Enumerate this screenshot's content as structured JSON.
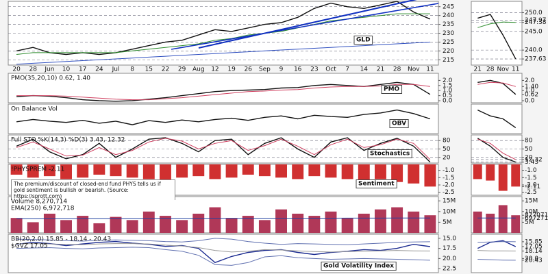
{
  "chart_data": {
    "type": "panels",
    "categories": [
      "20",
      "28",
      "Jun",
      "10",
      "17",
      "24",
      "Jul",
      "8",
      "15",
      "22",
      "29",
      "Aug",
      "12",
      "19",
      "26",
      "Sep",
      "9",
      "16",
      "23",
      "Oct",
      "7",
      "14",
      "21",
      "28",
      "Nov",
      "11"
    ],
    "zoom_categories": [
      "21",
      "28",
      "Nov",
      "11"
    ],
    "panels": [
      {
        "type": "line",
        "label": "GLD",
        "grid": true,
        "ylim": [
          212,
          248
        ],
        "yticks": [
          215,
          220,
          225,
          230,
          235,
          240,
          245
        ],
        "series": [
          {
            "color": "#111111",
            "values": [
              220,
              222,
              219,
              218,
              219,
              218,
              219,
              221,
              223,
              225,
              226,
              229,
              232,
              231,
              233,
              235,
              236,
              239,
              244,
              247,
              245,
              244,
              246,
              248,
              242,
              238
            ]
          },
          {
            "color": "#2a8a2a",
            "values": [
              218,
              219,
              219,
              219,
              219,
              219,
              219,
              220,
              221,
              222,
              223,
              224,
              226,
              227,
              229,
              230,
              231,
              233,
              235,
              237,
              238,
              239,
              240,
              241,
              241,
              241
            ]
          },
          {
            "color": "#3050c0",
            "values": [
              212.5,
              213,
              213.5,
              214,
              214.5,
              215,
              215.5,
              216,
              216.5,
              217,
              217.5,
              218,
              218.5,
              219,
              219.5,
              220,
              220.5,
              221,
              221.5,
              222,
              222.5,
              223,
              223.5,
              224,
              224.5,
              225
            ]
          }
        ],
        "zoom": {
          "ylim": [
            236,
            253
          ],
          "yticks": [
            {
              "value": 250,
              "label": "250.0"
            },
            247.97,
            247.38,
            {
              "value": 245,
              "label": "245.0"
            },
            {
              "value": 240,
              "label": "240.0"
            },
            237.63
          ],
          "series": [
            {
              "color": "#111111",
              "values": [
                248.5,
                249.5,
                244,
                237.63
              ]
            },
            {
              "color": "#2a8a2a",
              "values": [
                246,
                247,
                247.5,
                247.38
              ]
            }
          ]
        }
      },
      {
        "type": "line",
        "label": "PMO",
        "legend": [
          "PMO(35,20,10) 0.62, 1.40"
        ],
        "grid": false,
        "ylim": [
          -0.2,
          2.7
        ],
        "yticks": [
          {
            "value": 2,
            "label": "2.0"
          },
          1.5,
          {
            "value": 1,
            "label": "1.0"
          },
          0.5,
          {
            "value": 0,
            "label": "0.0"
          }
        ],
        "series": [
          {
            "color": "#111111",
            "values": [
              0.4,
              0.5,
              0.45,
              0.3,
              0.1,
              0.0,
              -0.05,
              0.0,
              0.15,
              0.3,
              0.5,
              0.7,
              0.9,
              1.0,
              1.05,
              1.1,
              1.25,
              1.3,
              1.5,
              1.6,
              1.5,
              1.4,
              1.6,
              1.8,
              1.6,
              0.62
            ]
          },
          {
            "color": "#d04060",
            "values": [
              0.5,
              0.5,
              0.5,
              0.45,
              0.35,
              0.25,
              0.15,
              0.1,
              0.1,
              0.2,
              0.3,
              0.45,
              0.6,
              0.75,
              0.9,
              0.95,
              1.05,
              1.1,
              1.25,
              1.35,
              1.4,
              1.4,
              1.45,
              1.6,
              1.6,
              1.4
            ]
          }
        ],
        "zoom": {
          "ylim": [
            -0.2,
            2.7
          ],
          "yticks": [
            {
              "value": 2,
              "label": "2.0"
            },
            {
              "value": 1.4,
              "label": "1.40"
            },
            {
              "value": 1,
              "label": "1.0"
            },
            0.62,
            {
              "value": 0,
              "label": "0.0"
            }
          ],
          "series": [
            {
              "color": "#111111",
              "values": [
                1.8,
                2.0,
                1.7,
                0.62
              ]
            },
            {
              "color": "#d04060",
              "values": [
                1.6,
                1.8,
                1.75,
                1.4
              ]
            }
          ]
        }
      },
      {
        "type": "line",
        "label": "OBV",
        "legend": [
          "On Balance Vol"
        ],
        "grid": false,
        "ylim": [
          0,
          100
        ],
        "yticks": [],
        "series": [
          {
            "color": "#111111",
            "values": [
              40,
              48,
              42,
              38,
              45,
              35,
              42,
              30,
              44,
              38,
              46,
              40,
              48,
              52,
              45,
              55,
              60,
              50,
              62,
              58,
              55,
              65,
              70,
              80,
              68,
              50
            ]
          }
        ],
        "zoom": {
          "ylim": [
            40,
            90
          ],
          "yticks": [],
          "series": [
            {
              "color": "#111111",
              "values": [
                80,
                70,
                65,
                50
              ]
            }
          ]
        }
      },
      {
        "type": "line",
        "label": "Stochastics",
        "legend": [
          "Full STO %K(14,3) %D(3) 3.43, 12.32"
        ],
        "grid": true,
        "ylim": [
          0,
          100
        ],
        "yticks": [
          80,
          50,
          20
        ],
        "series": [
          {
            "color": "#111111",
            "values": [
              60,
              85,
              40,
              15,
              30,
              70,
              20,
              50,
              85,
              90,
              70,
              40,
              80,
              85,
              30,
              70,
              90,
              50,
              20,
              75,
              90,
              45,
              70,
              88,
              60,
              3.43
            ]
          },
          {
            "color": "#d04060",
            "values": [
              55,
              75,
              50,
              25,
              28,
              55,
              30,
              45,
              75,
              88,
              78,
              50,
              70,
              80,
              45,
              62,
              85,
              60,
              30,
              65,
              85,
              55,
              65,
              85,
              70,
              12.32
            ]
          }
        ],
        "zoom": {
          "ylim": [
            0,
            100
          ],
          "yticks": [
            80,
            50,
            20,
            12.32,
            3.43
          ],
          "series": [
            {
              "color": "#111111",
              "values": [
                88,
                60,
                20,
                3.43
              ]
            },
            {
              "color": "#d04060",
              "values": [
                85,
                70,
                35,
                12.32
              ]
            }
          ]
        }
      },
      {
        "type": "bar",
        "label": "Sentiment",
        "legend": [
          "!PHYSPREM -2.11"
        ],
        "note": "The premium/discount of closed-end fund PHYS tells us if gold sentiment is bullish or bearish. (Source: https://sprott.com)",
        "grid": false,
        "ylim": [
          -2.7,
          -0.6
        ],
        "yticks": [
          {
            "value": -1,
            "label": "-1.0"
          },
          -1.5,
          {
            "value": -2,
            "label": "-2.0"
          },
          -2.5
        ],
        "series": [
          {
            "color": "#d03030",
            "values": [
              -1.3,
              -1.5,
              -1.4,
              -1.6,
              -1.5,
              -1.3,
              -1.4,
              -1.5,
              -1.6,
              -1.7,
              -1.5,
              -1.4,
              -1.6,
              -1.5,
              -1.3,
              -1.4,
              -1.5,
              -1.6,
              -1.4,
              -1.5,
              -1.6,
              -1.7,
              -1.6,
              -1.8,
              -1.9,
              -2.11
            ]
          }
        ],
        "zoom": {
          "ylim": [
            -2.7,
            -0.6
          ],
          "yticks": [
            {
              "value": -1,
              "label": "-1.0"
            },
            -1.5,
            {
              "value": -2,
              "label": "-2.0"
            },
            -2.11,
            -2.5
          ],
          "series": [
            {
              "color": "#d03030",
              "values": [
                -1.6,
                -1.7,
                -2.4,
                -2.11
              ]
            }
          ]
        }
      },
      {
        "type": "bar",
        "legend": [
          "Volume 8,270,714",
          "EMA(250) 6,972,718"
        ],
        "grid": false,
        "ylim": [
          0,
          17000000
        ],
        "yticks": [
          {
            "value": 15000000,
            "label": "15M"
          },
          {
            "value": 10000000,
            "label": "10M"
          },
          {
            "value": 5000000,
            "label": "5M"
          }
        ],
        "series": [
          {
            "color": "#b03858",
            "values": [
              7000000,
              5000000,
              9000000,
              6000000,
              8000000,
              4500000,
              7500000,
              6000000,
              10000000,
              8000000,
              6000000,
              9000000,
              12000000,
              7000000,
              8000000,
              6000000,
              11000000,
              9000000,
              8000000,
              10000000,
              7000000,
              9000000,
              11000000,
              12000000,
              10000000,
              8270714
            ]
          },
          {
            "type": "line",
            "color": "#2040a0",
            "values": [
              6600000,
              6620000,
              6640000,
              6660000,
              6680000,
              6700000,
              6710000,
              6720000,
              6740000,
              6760000,
              6770000,
              6790000,
              6810000,
              6820000,
              6840000,
              6850000,
              6870000,
              6880000,
              6900000,
              6910000,
              6920000,
              6930000,
              6940000,
              6950000,
              6960000,
              6972718
            ]
          }
        ],
        "zoom": {
          "ylim": [
            0,
            17000000
          ],
          "yticks": [
            {
              "value": 15000000,
              "label": "15M"
            },
            {
              "value": 10000000,
              "label": "10M"
            },
            8270714,
            6972718,
            {
              "value": 5000000,
              "label": "5M"
            }
          ],
          "series": [
            {
              "color": "#b03858",
              "values": [
                10000000,
                9000000,
                13000000,
                8270714
              ]
            },
            {
              "type": "line",
              "color": "#2040a0",
              "values": [
                6950000,
                6958000,
                6965000,
                6972718
              ]
            }
          ]
        }
      },
      {
        "type": "line",
        "label": "Gold Volatility Index",
        "legend": [
          "BB(20,2.0) 15.85 - 18.14 - 20.43",
          "$GVZ 17.05"
        ],
        "grid": false,
        "ylim": [
          23.5,
          14
        ],
        "yticks": [
          {
            "value": 15,
            "label": "15.0"
          },
          17.5,
          {
            "value": 20,
            "label": "20.0"
          },
          22.5
        ],
        "series": [
          {
            "color": "#1a2a90",
            "values": [
              16.5,
              16.0,
              16.3,
              16.8,
              16.4,
              16.0,
              15.8,
              16.2,
              16.5,
              17.0,
              16.8,
              17.5,
              21.0,
              19.5,
              18.5,
              18.0,
              17.8,
              18.5,
              19.0,
              18.5,
              18.2,
              17.8,
              18.0,
              17.5,
              16.5,
              17.05
            ]
          },
          {
            "color": "#6070b0",
            "values": [
              15.2,
              15.3,
              15.4,
              15.6,
              15.7,
              15.5,
              15.4,
              15.5,
              15.6,
              15.8,
              15.9,
              15.6,
              15.0,
              15.2,
              15.8,
              16.2,
              16.5,
              16.3,
              16.4,
              16.5,
              16.6,
              16.4,
              16.2,
              16.0,
              15.9,
              15.85
            ]
          },
          {
            "color": "#999999",
            "values": [
              16.4,
              16.3,
              16.4,
              16.5,
              16.6,
              16.4,
              16.3,
              16.3,
              16.4,
              16.7,
              16.9,
              17.3,
              18.0,
              18.4,
              18.2,
              17.8,
              17.9,
              18.1,
              18.3,
              18.4,
              18.3,
              18.2,
              18.1,
              18.0,
              18.1,
              18.14
            ]
          },
          {
            "color": "#6070b0",
            "values": [
              17.5,
              17.4,
              17.3,
              17.5,
              17.6,
              17.4,
              17.3,
              17.2,
              17.3,
              17.8,
              18.2,
              19.2,
              21.5,
              21.7,
              21.0,
              19.6,
              19.3,
              19.8,
              20.0,
              20.2,
              20.1,
              20.0,
              20.1,
              20.2,
              20.3,
              20.43
            ]
          }
        ],
        "zoom": {
          "ylim": [
            23.5,
            14
          ],
          "yticks": [
            15.85,
            17.05,
            18.14,
            {
              "value": 20,
              "label": "20.0"
            },
            20.43
          ],
          "series": [
            {
              "color": "#1a2a90",
              "values": [
                17.5,
                16.0,
                15.6,
                17.05
              ]
            },
            {
              "color": "#6070b0",
              "values": [
                16.0,
                15.9,
                15.8,
                15.85
              ]
            },
            {
              "color": "#999999",
              "values": [
                18.0,
                18.1,
                18.1,
                18.14
              ]
            },
            {
              "color": "#6070b0",
              "values": [
                20.2,
                20.3,
                20.4,
                20.43
              ]
            }
          ]
        }
      }
    ]
  }
}
